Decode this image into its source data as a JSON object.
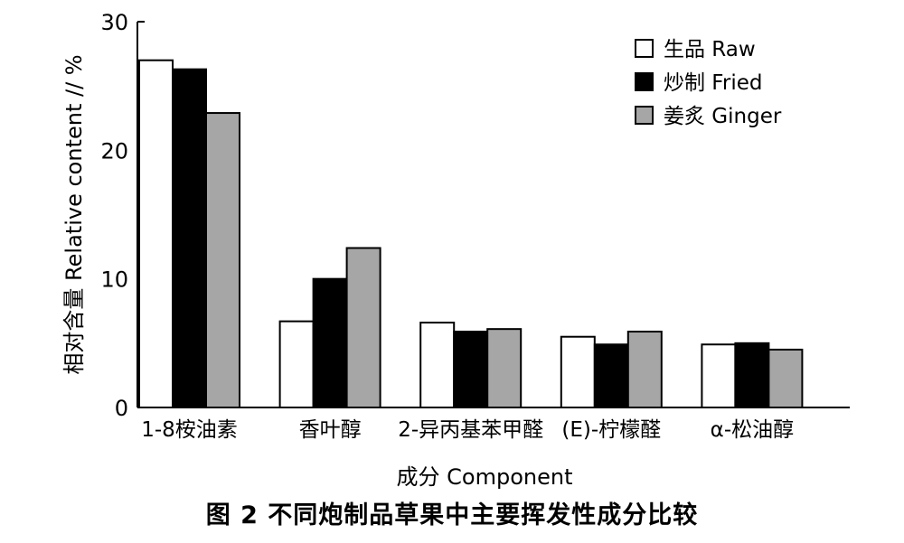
{
  "figure_caption": "图 2   不同炮制品草果中主要挥发性成分比较",
  "chart_data": {
    "type": "bar",
    "xlabel": "成分 Component",
    "ylabel": "相对含量 Relative content // %",
    "ylim": [
      0,
      30
    ],
    "yticks": [
      "0",
      "10",
      "20",
      "30"
    ],
    "categories": [
      "1-8桉油素",
      "香叶醇",
      "2-异丙基苯甲醛",
      "(E)-柠檬醛",
      "α-松油醇"
    ],
    "series": [
      {
        "name": "生品 Raw",
        "color": "#ffffff",
        "values": [
          27.0,
          6.7,
          6.6,
          5.5,
          4.9
        ]
      },
      {
        "name": "炒制 Fried",
        "color": "#000000",
        "values": [
          26.3,
          10.0,
          5.9,
          4.9,
          5.0
        ]
      },
      {
        "name": "姜炙 Ginger",
        "color": "#a6a6a6",
        "values": [
          22.9,
          12.4,
          6.1,
          5.9,
          4.5
        ]
      }
    ],
    "legend_position": "top-right",
    "grid": false
  }
}
